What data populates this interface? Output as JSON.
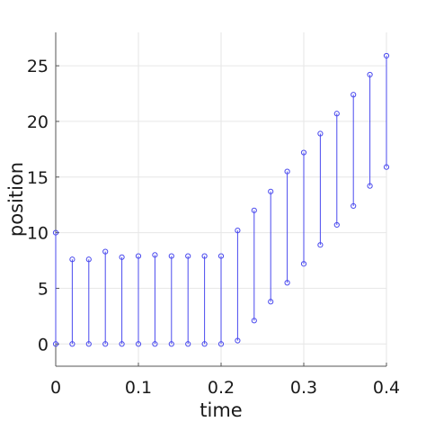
{
  "chart_data": {
    "type": "stem",
    "xlabel": "time",
    "ylabel": "position",
    "xlim": [
      0,
      0.4
    ],
    "ylim": [
      -2,
      28
    ],
    "xticks": [
      0,
      0.1,
      0.2,
      0.3,
      0.4
    ],
    "xtick_labels": [
      "0",
      "0.1",
      "0.2",
      "0.3",
      "0.4"
    ],
    "yticks": [
      0,
      5,
      10,
      15,
      20,
      25
    ],
    "ytick_labels": [
      "0",
      "5",
      "10",
      "15",
      "20",
      "25"
    ],
    "grid": true,
    "color": "#4a4aee",
    "intervals": [
      {
        "x": 0.0,
        "low": 0.0,
        "high": 10.0
      },
      {
        "x": 0.02,
        "low": 0.0,
        "high": 7.6
      },
      {
        "x": 0.04,
        "low": 0.0,
        "high": 7.6
      },
      {
        "x": 0.06,
        "low": 0.0,
        "high": 8.3
      },
      {
        "x": 0.08,
        "low": 0.0,
        "high": 7.8
      },
      {
        "x": 0.1,
        "low": 0.0,
        "high": 7.9
      },
      {
        "x": 0.12,
        "low": 0.0,
        "high": 8.0
      },
      {
        "x": 0.14,
        "low": 0.0,
        "high": 7.9
      },
      {
        "x": 0.16,
        "low": 0.0,
        "high": 7.9
      },
      {
        "x": 0.18,
        "low": 0.0,
        "high": 7.9
      },
      {
        "x": 0.2,
        "low": 0.0,
        "high": 7.9
      },
      {
        "x": 0.22,
        "low": 0.3,
        "high": 10.2
      },
      {
        "x": 0.24,
        "low": 2.1,
        "high": 12.0
      },
      {
        "x": 0.26,
        "low": 3.8,
        "high": 13.7
      },
      {
        "x": 0.28,
        "low": 5.5,
        "high": 15.5
      },
      {
        "x": 0.3,
        "low": 7.2,
        "high": 17.2
      },
      {
        "x": 0.32,
        "low": 8.9,
        "high": 18.9
      },
      {
        "x": 0.34,
        "low": 10.7,
        "high": 20.7
      },
      {
        "x": 0.36,
        "low": 12.4,
        "high": 22.4
      },
      {
        "x": 0.38,
        "low": 14.2,
        "high": 24.2
      },
      {
        "x": 0.4,
        "low": 15.9,
        "high": 25.9
      }
    ]
  }
}
